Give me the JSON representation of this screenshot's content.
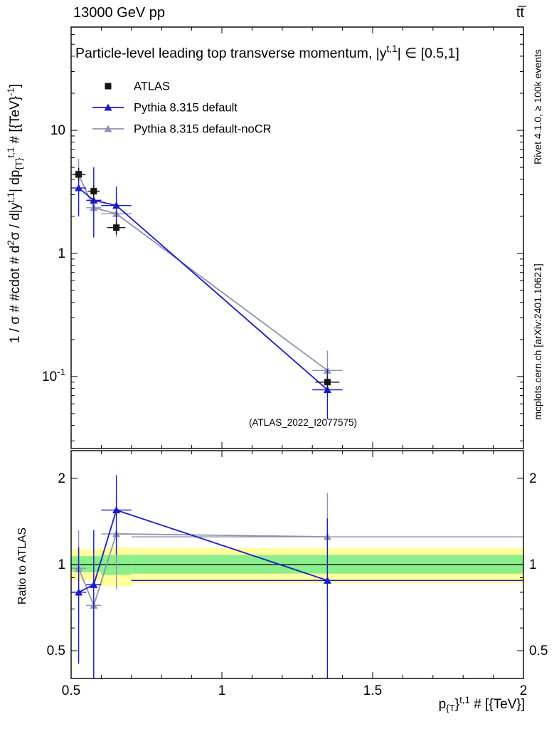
{
  "header": {
    "left": "13000 GeV pp",
    "right": "tt̅"
  },
  "side_notes": {
    "top_right": "Rivet 4.1.0, ≥ 100k events",
    "bottom_right": "mcplots.cern.ch [arXiv:2401.10621]"
  },
  "colors": {
    "atlas": "#161616",
    "pythia_default": "#1a1acd",
    "pythia_nocr": "#8f93b2",
    "band_yellow": "#ffff9c",
    "band_green": "#8aef8a",
    "note_gray": "#999999",
    "watermark_gray": "#bbbbbb"
  },
  "chart_data": {
    "type": "scatter",
    "x_axis": {
      "range": [
        0.5,
        2.0
      ],
      "major_ticks": [
        0.5,
        1,
        1.5,
        2
      ],
      "major_labels": [
        "0.5",
        "1",
        "1.5",
        "2"
      ],
      "minor_step": 0.1,
      "label_segments": [
        {
          "t": "p"
        },
        {
          "t": "{T",
          "sub": true
        },
        {
          "t": "}"
        },
        {
          "t": "t,1",
          "sup": true
        },
        {
          "t": " # [{TeV}]"
        }
      ]
    },
    "main_panel": {
      "title_segments": [
        {
          "t": "Particle-level leading top transverse momentum, |y"
        },
        {
          "t": "t,1",
          "sup": true
        },
        {
          "t": "| ∈ [0.5,1]"
        }
      ],
      "ylabel_segments": [
        {
          "t": "1 / σ # #cdot # d"
        },
        {
          "t": "2",
          "sup": true
        },
        {
          "t": "σ / d|y"
        },
        {
          "t": "t,1",
          "sup": true
        },
        {
          "t": "| dp"
        },
        {
          "t": "{T}",
          "sub": true
        },
        {
          "t": "t,1",
          "sup": true
        },
        {
          "t": " # [{TeV}"
        },
        {
          "t": "-1",
          "sup": true
        },
        {
          "t": "]"
        }
      ],
      "yscale": "log",
      "ylim": [
        0.026,
        69
      ],
      "ytick_labels": [
        {
          "v": 10,
          "segments": [
            {
              "t": "10"
            }
          ]
        },
        {
          "v": 1,
          "segments": [
            {
              "t": "1"
            }
          ]
        },
        {
          "v": 0.1,
          "segments": [
            {
              "t": "10"
            },
            {
              "t": "-1",
              "sup": true
            }
          ]
        }
      ],
      "watermark": "(ATLAS_2022_I2077575)",
      "series": [
        {
          "name": "Pythia 8.315 default-noCR",
          "color_key": "pythia_nocr",
          "marker": "triangle",
          "line": true,
          "x": [
            0.525,
            0.575,
            0.65,
            1.35
          ],
          "xlo": [
            0.5,
            0.55,
            0.6,
            1.3
          ],
          "xhi": [
            0.55,
            0.6,
            0.7,
            1.4
          ],
          "y": [
            4.35,
            2.35,
            2.1,
            0.112
          ],
          "eylo": [
            1.45,
            1.0,
            0.75,
            0.042
          ],
          "eyhi": [
            1.55,
            1.15,
            0.95,
            0.05
          ]
        },
        {
          "name": "Pythia 8.315 default",
          "color_key": "pythia_default",
          "marker": "triangle",
          "line": true,
          "x": [
            0.525,
            0.575,
            0.65,
            1.35
          ],
          "xlo": [
            0.5,
            0.55,
            0.6,
            1.3
          ],
          "xhi": [
            0.55,
            0.6,
            0.7,
            1.4
          ],
          "y": [
            3.4,
            2.7,
            2.45,
            0.078
          ],
          "eylo": [
            1.4,
            1.35,
            0.9,
            0.033
          ],
          "eyhi": [
            1.5,
            2.3,
            1.05,
            0.037
          ]
        },
        {
          "name": "ATLAS",
          "color_key": "atlas",
          "marker": "square",
          "line": false,
          "x": [
            0.525,
            0.575,
            0.65,
            1.35
          ],
          "xlo": [
            0.505,
            0.555,
            0.62,
            1.31
          ],
          "xhi": [
            0.545,
            0.595,
            0.68,
            1.39
          ],
          "y": [
            4.4,
            3.2,
            1.62,
            0.09
          ],
          "eylo": [
            0.5,
            0.4,
            0.2,
            0.012
          ],
          "eyhi": [
            0.55,
            0.4,
            0.2,
            0.012
          ]
        }
      ]
    },
    "ratio_panel": {
      "ylabel": "Ratio to ATLAS",
      "yscale": "log",
      "ylim": [
        0.4,
        2.5
      ],
      "reference_line": 1,
      "ytick_labels": [
        {
          "v": 2,
          "segments": [
            {
              "t": "2"
            }
          ]
        },
        {
          "v": 1,
          "segments": [
            {
              "t": "1"
            }
          ]
        },
        {
          "v": 0.5,
          "segments": [
            {
              "t": "0.5"
            }
          ]
        }
      ],
      "bands": [
        {
          "x": [
            0.5,
            0.55
          ],
          "yellow": [
            0.88,
            1.13
          ],
          "green": [
            0.94,
            1.07
          ]
        },
        {
          "x": [
            0.55,
            0.6
          ],
          "yellow": [
            0.88,
            1.13
          ],
          "green": [
            0.94,
            1.07
          ]
        },
        {
          "x": [
            0.6,
            0.7
          ],
          "yellow": [
            0.84,
            1.15
          ],
          "green": [
            0.92,
            1.08
          ]
        },
        {
          "x": [
            0.7,
            2.0
          ],
          "yellow": [
            0.86,
            1.14
          ],
          "green": [
            0.93,
            1.08
          ]
        }
      ],
      "series": [
        {
          "name": "Pythia 8.315 default-noCR",
          "color_key": "pythia_nocr",
          "marker": "triangle",
          "line": true,
          "x": [
            0.525,
            0.575,
            0.65,
            1.35
          ],
          "xlo": [
            0.5,
            0.55,
            0.6,
            0.7
          ],
          "xhi": [
            0.55,
            0.6,
            0.7,
            2.0
          ],
          "y": [
            0.97,
            0.72,
            1.28,
            1.25
          ],
          "eylo": [
            0.35,
            0.32,
            0.46,
            0.53
          ],
          "eyhi": [
            0.35,
            0.33,
            0.47,
            0.53
          ]
        },
        {
          "name": "Pythia 8.315 default",
          "color_key": "pythia_default",
          "marker": "triangle",
          "line": true,
          "x": [
            0.525,
            0.575,
            0.65,
            1.35
          ],
          "xlo": [
            0.5,
            0.55,
            0.6,
            0.7
          ],
          "xhi": [
            0.55,
            0.6,
            0.7,
            2.0
          ],
          "y": [
            0.8,
            0.85,
            1.55,
            0.88
          ],
          "eylo": [
            0.35,
            0.47,
            0.47,
            0.58
          ],
          "eyhi": [
            0.35,
            0.47,
            0.5,
            0.57
          ]
        }
      ]
    },
    "legend": [
      {
        "label": "ATLAS",
        "marker": "square",
        "color_key": "atlas",
        "line": false
      },
      {
        "label": "Pythia 8.315 default",
        "marker": "triangle",
        "color_key": "pythia_default",
        "line": true
      },
      {
        "label": "Pythia 8.315 default-noCR",
        "marker": "triangle",
        "color_key": "pythia_nocr",
        "line": true
      }
    ]
  }
}
